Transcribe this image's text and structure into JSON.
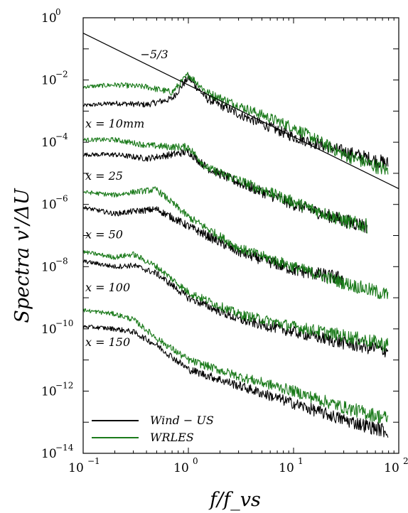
{
  "chart_data": {
    "type": "line",
    "x_scale": "log",
    "y_scale": "log",
    "xlim": [
      0.1,
      100
    ],
    "ylim": [
      1e-14,
      1
    ],
    "xlabel": "f/f_vs",
    "ylabel": "Spectra v'/ΔU",
    "x_ticks": [
      {
        "value": 0.1,
        "base": "10",
        "exp": "−1"
      },
      {
        "value": 1,
        "base": "10",
        "exp": "0"
      },
      {
        "value": 10,
        "base": "10",
        "exp": "1"
      },
      {
        "value": 100,
        "base": "10",
        "exp": "2"
      }
    ],
    "y_ticks": [
      {
        "value": 1,
        "base": "10",
        "exp": "0"
      },
      {
        "value": 0.01,
        "base": "10",
        "exp": "−2"
      },
      {
        "value": 0.0001,
        "base": "10",
        "exp": "−4"
      },
      {
        "value": 1e-06,
        "base": "10",
        "exp": "−6"
      },
      {
        "value": 1e-08,
        "base": "10",
        "exp": "−8"
      },
      {
        "value": 1e-10,
        "base": "10",
        "exp": "−10"
      },
      {
        "value": 1e-12,
        "base": "10",
        "exp": "−12"
      },
      {
        "value": 1e-14,
        "base": "10",
        "exp": "−14"
      }
    ],
    "legend": {
      "placement": "bottom-left",
      "entries": [
        {
          "name": "Wind − US",
          "color": "#000000"
        },
        {
          "name": "WRLES",
          "color": "#1a7a1a"
        }
      ]
    },
    "reference_line": {
      "label": "−5/3",
      "slope": -1.6667,
      "points": [
        [
          0.1,
          0.32
        ],
        [
          100,
          3.2e-06
        ]
      ]
    },
    "annotations": [
      {
        "text": "x = 10mm",
        "at": [
          0.1,
          0.0003
        ]
      },
      {
        "text": "x = 25",
        "at": [
          0.1,
          6.2e-06
        ]
      },
      {
        "text": "x = 50",
        "at": [
          0.1,
          8e-08
        ]
      },
      {
        "text": "x = 100",
        "at": [
          0.1,
          1.6e-09
        ]
      },
      {
        "text": "x = 150",
        "at": [
          0.1,
          2.8e-11
        ]
      }
    ],
    "series": [
      {
        "name": "Wind − US",
        "station": "x = 10mm",
        "color": "#000000",
        "x": [
          0.1,
          0.2,
          0.4,
          0.7,
          1.0,
          1.5,
          3,
          10,
          30,
          80
        ],
        "y": [
          0.0015,
          0.0018,
          0.0016,
          0.0025,
          0.012,
          0.0025,
          0.0008,
          0.00015,
          5e-05,
          2e-05
        ]
      },
      {
        "name": "WRLES",
        "station": "x = 10mm",
        "color": "#1a7a1a",
        "x": [
          0.1,
          0.2,
          0.4,
          0.7,
          1.0,
          1.5,
          3,
          10,
          30,
          80
        ],
        "y": [
          0.006,
          0.007,
          0.006,
          0.004,
          0.015,
          0.004,
          0.0015,
          0.0003,
          4e-05,
          1.2e-05
        ]
      },
      {
        "name": "Wind − US",
        "station": "x = 25",
        "color": "#000000",
        "x": [
          0.1,
          0.2,
          0.4,
          0.7,
          1.0,
          1.5,
          3,
          10,
          30,
          50
        ],
        "y": [
          4e-05,
          4e-05,
          3e-05,
          4e-05,
          5e-05,
          1.5e-05,
          5e-06,
          1e-06,
          3e-07,
          2e-07
        ]
      },
      {
        "name": "WRLES",
        "station": "x = 25",
        "color": "#1a7a1a",
        "x": [
          0.1,
          0.2,
          0.4,
          0.7,
          1.0,
          1.5,
          3,
          10,
          30,
          50
        ],
        "y": [
          0.00012,
          0.00012,
          8e-05,
          7e-05,
          7e-05,
          1.5e-05,
          6e-06,
          1.2e-06,
          3e-07,
          2e-07
        ]
      },
      {
        "name": "Wind − US",
        "station": "x = 50",
        "color": "#000000",
        "x": [
          0.1,
          0.2,
          0.3,
          0.5,
          1,
          3,
          10,
          30
        ],
        "y": [
          8e-07,
          5e-07,
          6e-07,
          7e-07,
          2e-07,
          3e-08,
          8e-09,
          4e-09
        ]
      },
      {
        "name": "WRLES",
        "station": "x = 50",
        "color": "#1a7a1a",
        "x": [
          0.1,
          0.2,
          0.3,
          0.5,
          1,
          3,
          10,
          30,
          80
        ],
        "y": [
          2.5e-06,
          2e-06,
          2.5e-06,
          3e-06,
          4e-07,
          4e-08,
          1e-08,
          3e-09,
          1.2e-09
        ]
      },
      {
        "name": "Wind − US",
        "station": "x = 100",
        "color": "#000000",
        "x": [
          0.1,
          0.2,
          0.3,
          0.5,
          1,
          3,
          10,
          30,
          80
        ],
        "y": [
          1.5e-08,
          1e-08,
          1.1e-08,
          6e-09,
          1e-09,
          2e-10,
          8e-11,
          3.5e-11,
          2e-11
        ]
      },
      {
        "name": "WRLES",
        "station": "x = 100",
        "color": "#1a7a1a",
        "x": [
          0.1,
          0.2,
          0.3,
          0.5,
          1,
          3,
          10,
          30,
          80
        ],
        "y": [
          3e-08,
          2e-08,
          2.5e-08,
          1e-08,
          1.5e-09,
          3e-10,
          1.2e-10,
          6e-11,
          3e-11
        ]
      },
      {
        "name": "Wind − US",
        "station": "x = 150",
        "color": "#000000",
        "x": [
          0.1,
          0.2,
          0.3,
          0.5,
          1,
          3,
          10,
          30,
          80
        ],
        "y": [
          1.2e-10,
          1e-10,
          8e-11,
          3e-11,
          5e-12,
          1.5e-12,
          4e-13,
          1.2e-13,
          5e-14
        ]
      },
      {
        "name": "WRLES",
        "station": "x = 150",
        "color": "#1a7a1a",
        "x": [
          0.1,
          0.2,
          0.3,
          0.5,
          1,
          3,
          10,
          30,
          80
        ],
        "y": [
          4e-10,
          3e-10,
          2e-10,
          5e-11,
          1e-11,
          3e-12,
          1e-12,
          3e-13,
          1.3e-13
        ]
      }
    ]
  }
}
